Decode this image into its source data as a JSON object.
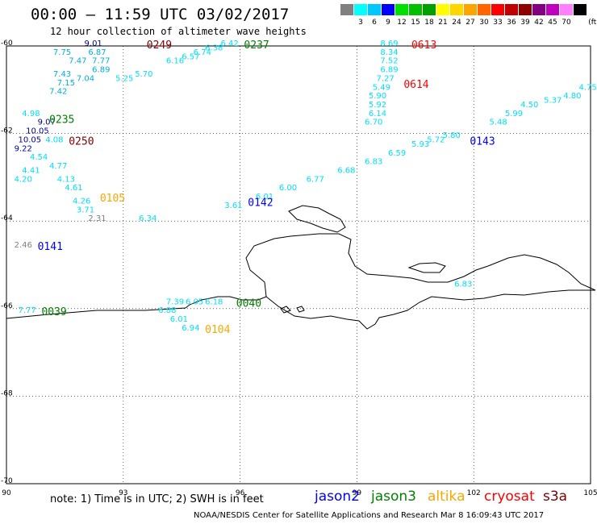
{
  "header": {
    "title": "00:00 – 11:59 UTC 03/02/2017",
    "subtitle": "12 hour collection of altimeter wave heights"
  },
  "color_scale": {
    "unit": "(ft)",
    "bins": [
      {
        "label": "",
        "color": "#808080"
      },
      {
        "label": "3",
        "color": "#00ffff"
      },
      {
        "label": "6",
        "color": "#00c8ff"
      },
      {
        "label": "9",
        "color": "#0000ff"
      },
      {
        "label": "12",
        "color": "#00e000"
      },
      {
        "label": "15",
        "color": "#00c000"
      },
      {
        "label": "18",
        "color": "#00a000"
      },
      {
        "label": "21",
        "color": "#ffff00"
      },
      {
        "label": "24",
        "color": "#ffd700"
      },
      {
        "label": "27",
        "color": "#ffa500"
      },
      {
        "label": "30",
        "color": "#ff6600"
      },
      {
        "label": "33",
        "color": "#ff0000"
      },
      {
        "label": "36",
        "color": "#c00000"
      },
      {
        "label": "39",
        "color": "#900000"
      },
      {
        "label": "42",
        "color": "#800080"
      },
      {
        "label": "45",
        "color": "#c000c0"
      },
      {
        "label": "70",
        "color": "#ff80ff"
      },
      {
        "label": "",
        "color": "#000000"
      }
    ]
  },
  "map": {
    "lon_range": [
      90,
      105
    ],
    "lat_range": [
      -70,
      -60
    ],
    "lon_ticks": [
      "90",
      "93",
      "96",
      "99",
      "102",
      "105"
    ],
    "lat_ticks": [
      "-60",
      "-62",
      "-64",
      "-66",
      "-68",
      "-70"
    ],
    "time_labels": [
      {
        "text": "0249",
        "lon": 93.6,
        "lat": -60.0,
        "color": "#800000"
      },
      {
        "text": "0237",
        "lon": 96.1,
        "lat": -60.0,
        "color": "#008000"
      },
      {
        "text": "0613",
        "lon": 100.4,
        "lat": -60.0,
        "color": "#ff0000"
      },
      {
        "text": "0614",
        "lon": 100.2,
        "lat": -60.9,
        "color": "#ff0000"
      },
      {
        "text": "0235",
        "lon": 91.1,
        "lat": -61.7,
        "color": "#008000"
      },
      {
        "text": "0250",
        "lon": 91.6,
        "lat": -62.2,
        "color": "#800000"
      },
      {
        "text": "0143",
        "lon": 101.9,
        "lat": -62.2,
        "color": "#0000ff"
      },
      {
        "text": "0105",
        "lon": 92.4,
        "lat": -63.5,
        "color": "#ffa500"
      },
      {
        "text": "0142",
        "lon": 96.2,
        "lat": -63.6,
        "color": "#0000ff"
      },
      {
        "text": "0141",
        "lon": 90.8,
        "lat": -64.6,
        "color": "#0000ff"
      },
      {
        "text": "0040",
        "lon": 95.9,
        "lat": -65.9,
        "color": "#008000"
      },
      {
        "text": "0039",
        "lon": 90.9,
        "lat": -66.1,
        "color": "#008000"
      },
      {
        "text": "0104",
        "lon": 95.1,
        "lat": -66.5,
        "color": "#ffa500"
      }
    ],
    "wave_values": [
      {
        "text": "9.01",
        "lon": 92.0,
        "lat": -60.0,
        "color": "#000080"
      },
      {
        "text": "7.75",
        "lon": 91.2,
        "lat": -60.2,
        "color": "#00b0e0"
      },
      {
        "text": "6.87",
        "lon": 92.1,
        "lat": -60.2,
        "color": "#00b0e0"
      },
      {
        "text": "7.47",
        "lon": 91.6,
        "lat": -60.4,
        "color": "#00b0e0"
      },
      {
        "text": "7.77",
        "lon": 92.2,
        "lat": -60.4,
        "color": "#00b0e0"
      },
      {
        "text": "6.89",
        "lon": 92.2,
        "lat": -60.6,
        "color": "#00b0e0"
      },
      {
        "text": "7.43",
        "lon": 91.2,
        "lat": -60.7,
        "color": "#00b0e0"
      },
      {
        "text": "7.04",
        "lon": 91.8,
        "lat": -60.8,
        "color": "#00b0e0"
      },
      {
        "text": "7.15",
        "lon": 91.3,
        "lat": -60.9,
        "color": "#00b0e0"
      },
      {
        "text": "7.42",
        "lon": 91.1,
        "lat": -61.1,
        "color": "#00b0e0"
      },
      {
        "text": "5.25",
        "lon": 92.8,
        "lat": -60.8,
        "color": "#00e0ff"
      },
      {
        "text": "5.70",
        "lon": 93.3,
        "lat": -60.7,
        "color": "#00e0ff"
      },
      {
        "text": "6.16",
        "lon": 94.1,
        "lat": -60.4,
        "color": "#00e0ff"
      },
      {
        "text": "6.57",
        "lon": 94.5,
        "lat": -60.3,
        "color": "#00e0ff"
      },
      {
        "text": "6.74",
        "lon": 94.8,
        "lat": -60.2,
        "color": "#00e0ff"
      },
      {
        "text": "6.38",
        "lon": 95.1,
        "lat": -60.1,
        "color": "#00e0ff"
      },
      {
        "text": "6.42",
        "lon": 95.5,
        "lat": -60.0,
        "color": "#00e0ff"
      },
      {
        "text": "4.98",
        "lon": 90.4,
        "lat": -61.6,
        "color": "#00e0ff"
      },
      {
        "text": "9.07",
        "lon": 90.8,
        "lat": -61.8,
        "color": "#000080"
      },
      {
        "text": "10.05",
        "lon": 90.5,
        "lat": -62.0,
        "color": "#0000a0"
      },
      {
        "text": "10.05",
        "lon": 90.3,
        "lat": -62.2,
        "color": "#0000a0"
      },
      {
        "text": "9.22",
        "lon": 90.2,
        "lat": -62.4,
        "color": "#0000a0"
      },
      {
        "text": "4.08",
        "lon": 91.0,
        "lat": -62.2,
        "color": "#00e0ff"
      },
      {
        "text": "4.54",
        "lon": 90.6,
        "lat": -62.6,
        "color": "#00e0ff"
      },
      {
        "text": "4.41",
        "lon": 90.4,
        "lat": -62.9,
        "color": "#00e0ff"
      },
      {
        "text": "4.77",
        "lon": 91.1,
        "lat": -62.8,
        "color": "#00e0ff"
      },
      {
        "text": "4.20",
        "lon": 90.2,
        "lat": -63.1,
        "color": "#00e0ff"
      },
      {
        "text": "4.13",
        "lon": 91.3,
        "lat": -63.1,
        "color": "#00e0ff"
      },
      {
        "text": "4.61",
        "lon": 91.5,
        "lat": -63.3,
        "color": "#00e0ff"
      },
      {
        "text": "4.26",
        "lon": 91.7,
        "lat": -63.6,
        "color": "#00e0ff"
      },
      {
        "text": "3.71",
        "lon": 91.8,
        "lat": -63.8,
        "color": "#00e0ff"
      },
      {
        "text": "2.31",
        "lon": 92.1,
        "lat": -64.0,
        "color": "#808080"
      },
      {
        "text": "6.34",
        "lon": 93.4,
        "lat": -64.0,
        "color": "#00e0ff"
      },
      {
        "text": "2.46",
        "lon": 90.2,
        "lat": -64.6,
        "color": "#808080"
      },
      {
        "text": "8.69",
        "lon": 99.6,
        "lat": -60.0,
        "color": "#00e0ff"
      },
      {
        "text": "8.34",
        "lon": 99.6,
        "lat": -60.2,
        "color": "#00e0ff"
      },
      {
        "text": "7.52",
        "lon": 99.6,
        "lat": -60.4,
        "color": "#00e0ff"
      },
      {
        "text": "6.89",
        "lon": 99.6,
        "lat": -60.6,
        "color": "#00e0ff"
      },
      {
        "text": "7.27",
        "lon": 99.5,
        "lat": -60.8,
        "color": "#00e0ff"
      },
      {
        "text": "5.49",
        "lon": 99.4,
        "lat": -61.0,
        "color": "#00e0ff"
      },
      {
        "text": "5.90",
        "lon": 99.3,
        "lat": -61.2,
        "color": "#00e0ff"
      },
      {
        "text": "5.92",
        "lon": 99.3,
        "lat": -61.4,
        "color": "#00e0ff"
      },
      {
        "text": "6.14",
        "lon": 99.3,
        "lat": -61.6,
        "color": "#00e0ff"
      },
      {
        "text": "6.70",
        "lon": 99.2,
        "lat": -61.8,
        "color": "#00e0ff"
      },
      {
        "text": "3.61",
        "lon": 95.6,
        "lat": -63.7,
        "color": "#00e0ff"
      },
      {
        "text": "6.01",
        "lon": 96.4,
        "lat": -63.5,
        "color": "#00e0ff"
      },
      {
        "text": "6.00",
        "lon": 97.0,
        "lat": -63.3,
        "color": "#00e0ff"
      },
      {
        "text": "6.77",
        "lon": 97.7,
        "lat": -63.1,
        "color": "#00e0ff"
      },
      {
        "text": "6.68",
        "lon": 98.5,
        "lat": -62.9,
        "color": "#00e0ff"
      },
      {
        "text": "6.83",
        "lon": 99.2,
        "lat": -62.7,
        "color": "#00e0ff"
      },
      {
        "text": "6.59",
        "lon": 99.8,
        "lat": -62.5,
        "color": "#00e0ff"
      },
      {
        "text": "5.93",
        "lon": 100.4,
        "lat": -62.3,
        "color": "#00e0ff"
      },
      {
        "text": "5.72",
        "lon": 100.8,
        "lat": -62.2,
        "color": "#00e0ff"
      },
      {
        "text": "5.80",
        "lon": 101.2,
        "lat": -62.1,
        "color": "#00e0ff"
      },
      {
        "text": "5.48",
        "lon": 102.4,
        "lat": -61.8,
        "color": "#00e0ff"
      },
      {
        "text": "5.99",
        "lon": 102.8,
        "lat": -61.6,
        "color": "#00e0ff"
      },
      {
        "text": "4.50",
        "lon": 103.2,
        "lat": -61.4,
        "color": "#00e0ff"
      },
      {
        "text": "5.37",
        "lon": 103.8,
        "lat": -61.3,
        "color": "#00e0ff"
      },
      {
        "text": "4.80",
        "lon": 104.3,
        "lat": -61.2,
        "color": "#00e0ff"
      },
      {
        "text": "4.75",
        "lon": 104.7,
        "lat": -61.0,
        "color": "#00e0ff"
      },
      {
        "text": "6.83",
        "lon": 101.5,
        "lat": -65.5,
        "color": "#00e0ff"
      },
      {
        "text": "7.39",
        "lon": 94.1,
        "lat": -65.9,
        "color": "#00e0ff"
      },
      {
        "text": "6.05",
        "lon": 94.6,
        "lat": -65.9,
        "color": "#00e0ff"
      },
      {
        "text": "6.18",
        "lon": 95.1,
        "lat": -65.9,
        "color": "#00e0ff"
      },
      {
        "text": "6.88",
        "lon": 93.9,
        "lat": -66.1,
        "color": "#00e0ff"
      },
      {
        "text": "6.01",
        "lon": 94.2,
        "lat": -66.3,
        "color": "#00e0ff"
      },
      {
        "text": "6.94",
        "lon": 94.5,
        "lat": -66.5,
        "color": "#00e0ff"
      },
      {
        "text": "7.77",
        "lon": 90.3,
        "lat": -66.1,
        "color": "#00e0ff"
      }
    ]
  },
  "footer": {
    "note": "note:  1) Time is in UTC;  2) SWH is in feet",
    "credit": "NOAA/NESDIS Center for Satellite Applications and Research    Mar  8 16:09:43 UTC 2017",
    "satellites": [
      {
        "name": "jason2",
        "color": "#0000ff"
      },
      {
        "name": "jason3",
        "color": "#008000"
      },
      {
        "name": "altika",
        "color": "#ffa500"
      },
      {
        "name": "cryosat",
        "color": "#ff0000"
      },
      {
        "name": "s3a",
        "color": "#800000"
      }
    ]
  }
}
